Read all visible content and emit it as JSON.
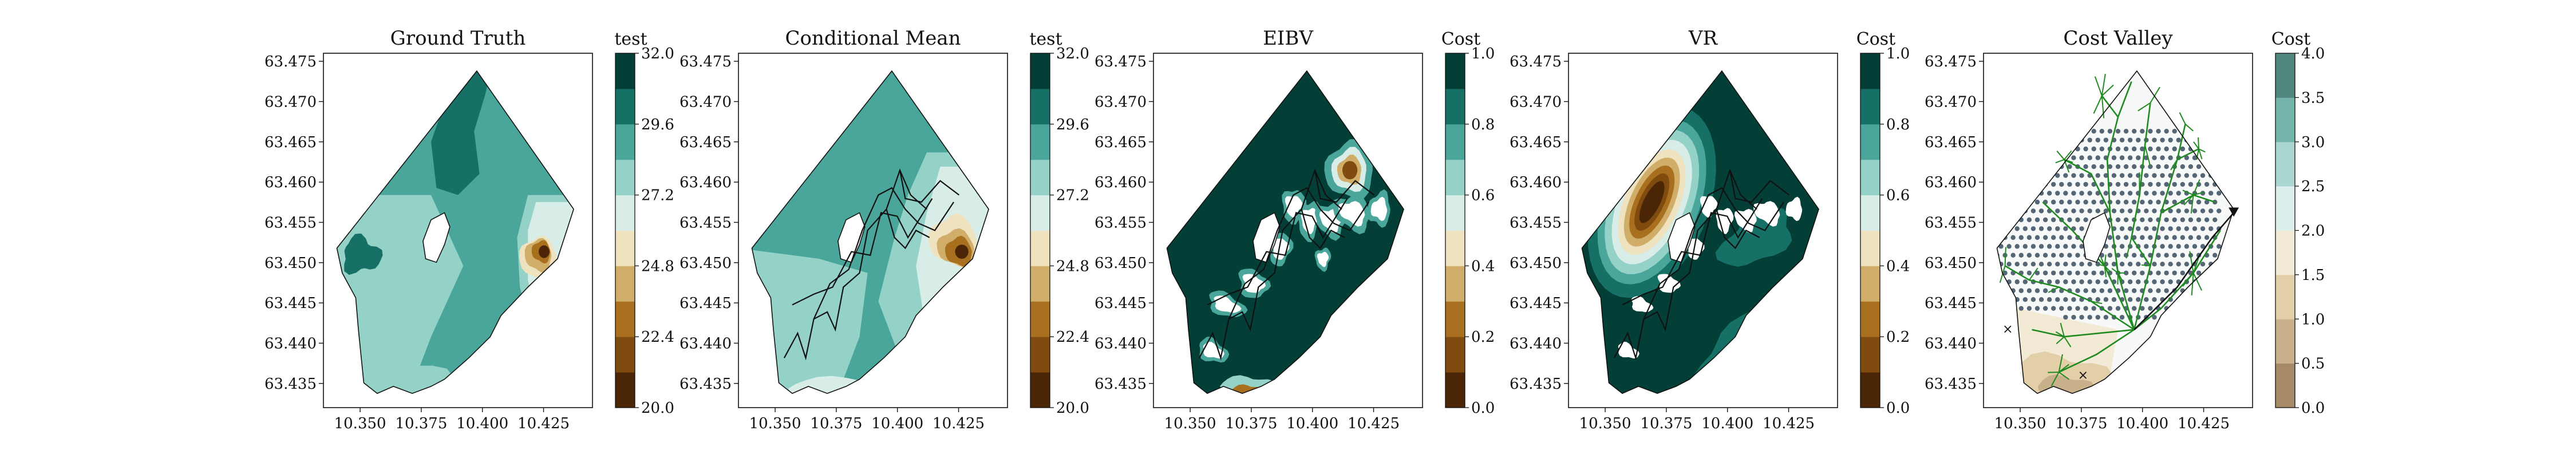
{
  "chart_data": [
    {
      "type": "contour-map",
      "title": "Ground Truth",
      "xlim": [
        10.335,
        10.445
      ],
      "ylim": [
        63.432,
        63.476
      ],
      "xticks": [
        "10.350",
        "10.375",
        "10.400",
        "10.425"
      ],
      "yticks": [
        "63.435",
        "63.440",
        "63.445",
        "63.450",
        "63.455",
        "63.460",
        "63.465",
        "63.470",
        "63.475"
      ],
      "colorbar": {
        "title": "test",
        "ticks": [
          "32.0",
          "29.6",
          "27.2",
          "24.8",
          "22.4",
          "20.0"
        ],
        "range": [
          20.0,
          32.0
        ],
        "colormap": "BrBG",
        "levels": 10
      }
    },
    {
      "type": "contour-map",
      "title": "Conditional Mean",
      "xlim": [
        10.335,
        10.445
      ],
      "ylim": [
        63.432,
        63.476
      ],
      "xticks": [
        "10.350",
        "10.375",
        "10.400",
        "10.425"
      ],
      "yticks": [
        "63.435",
        "63.440",
        "63.445",
        "63.450",
        "63.455",
        "63.460",
        "63.465",
        "63.470",
        "63.475"
      ],
      "colorbar": {
        "title": "test",
        "ticks": [
          "32.0",
          "29.6",
          "27.2",
          "24.8",
          "22.4",
          "20.0"
        ],
        "range": [
          20.0,
          32.0
        ],
        "colormap": "BrBG",
        "levels": 10
      },
      "overlay": "sampled trajectory (black lines)"
    },
    {
      "type": "contour-map",
      "title": "EIBV",
      "xlim": [
        10.335,
        10.445
      ],
      "ylim": [
        63.432,
        63.476
      ],
      "xticks": [
        "10.350",
        "10.375",
        "10.400",
        "10.425"
      ],
      "yticks": [
        "63.435",
        "63.440",
        "63.445",
        "63.450",
        "63.455",
        "63.460",
        "63.465",
        "63.470",
        "63.475"
      ],
      "colorbar": {
        "title": "Cost",
        "ticks": [
          "1.0",
          "0.8",
          "0.6",
          "0.4",
          "0.2",
          "0.0"
        ],
        "range": [
          0.0,
          1.0
        ],
        "colormap": "BrBG",
        "levels": 10
      },
      "overlay": "sampled trajectory (black lines)"
    },
    {
      "type": "contour-map",
      "title": "VR",
      "xlim": [
        10.335,
        10.445
      ],
      "ylim": [
        63.432,
        63.476
      ],
      "xticks": [
        "10.350",
        "10.375",
        "10.400",
        "10.425"
      ],
      "yticks": [
        "63.435",
        "63.440",
        "63.445",
        "63.450",
        "63.455",
        "63.460",
        "63.465",
        "63.470",
        "63.475"
      ],
      "colorbar": {
        "title": "Cost",
        "ticks": [
          "1.0",
          "0.8",
          "0.6",
          "0.4",
          "0.2",
          "0.0"
        ],
        "range": [
          0.0,
          1.0
        ],
        "colormap": "BrBG",
        "levels": 10
      },
      "overlay": "sampled trajectory (black lines)"
    },
    {
      "type": "contour-map",
      "title": "Cost Valley",
      "xlim": [
        10.335,
        10.445
      ],
      "ylim": [
        63.432,
        63.476
      ],
      "xticks": [
        "10.350",
        "10.375",
        "10.400",
        "10.425"
      ],
      "yticks": [
        "63.435",
        "63.440",
        "63.445",
        "63.450",
        "63.455",
        "63.460",
        "63.465",
        "63.470",
        "63.475"
      ],
      "colorbar": {
        "title": "Cost",
        "ticks": [
          "4.0",
          "3.5",
          "3.0",
          "2.5",
          "2.0",
          "1.5",
          "1.0",
          "0.5",
          "0.0"
        ],
        "range": [
          0.0,
          4.0
        ],
        "colormap": "BrBG (faded)",
        "levels": 8
      },
      "overlay": "candidate grid points, green RRT tree, planned path"
    }
  ],
  "colors": {
    "frame": "#111111",
    "tree": "#1f8a1f",
    "path": "#111111",
    "grid_points": "#556677"
  }
}
